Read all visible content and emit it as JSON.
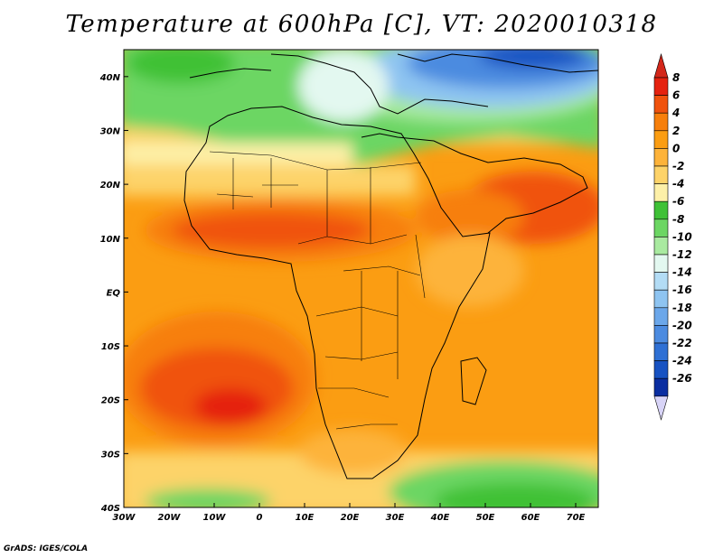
{
  "title": "Temperature at 600hPa [C], VT: 2020010318",
  "credit": "GrADS: IGES/COLA",
  "map": {
    "variable": "Temperature",
    "level": "600hPa",
    "units": "C",
    "valid_time": "2020010318",
    "lon_range": [
      -30,
      75
    ],
    "lat_range": [
      -40,
      45
    ],
    "lat_labels": [
      "40N",
      "30N",
      "20N",
      "10N",
      "EQ",
      "10S",
      "20S",
      "30S",
      "40S"
    ],
    "lat_values": [
      40,
      30,
      20,
      10,
      0,
      -10,
      -20,
      -30,
      -40
    ],
    "lon_labels": [
      "30W",
      "20W",
      "10W",
      "0",
      "10E",
      "20E",
      "30E",
      "40E",
      "50E",
      "60E",
      "70E"
    ],
    "lon_values": [
      -30,
      -20,
      -10,
      0,
      10,
      20,
      30,
      40,
      50,
      60,
      70
    ]
  },
  "colorbar": {
    "labels": [
      "8",
      "6",
      "4",
      "2",
      "0",
      "-2",
      "-4",
      "-6",
      "-8",
      "-10",
      "-12",
      "-14",
      "-16",
      "-18",
      "-20",
      "-22",
      "-24",
      "-26"
    ],
    "colors": [
      "#e5220f",
      "#f0520d",
      "#f77f0b",
      "#fb9d12",
      "#fdb33a",
      "#fdd369",
      "#fdf0a8",
      "#3fc136",
      "#6cd663",
      "#a9eaa0",
      "#e3f8f0",
      "#b3dcf5",
      "#8ec4f1",
      "#6ba7ea",
      "#4c8be0",
      "#2f70d4",
      "#1752c2",
      "#0a2ea1",
      "#0b1a6e"
    ],
    "top_arrow_color": "#d3271a",
    "bottom_arrow_color": "#d8d4f7"
  }
}
